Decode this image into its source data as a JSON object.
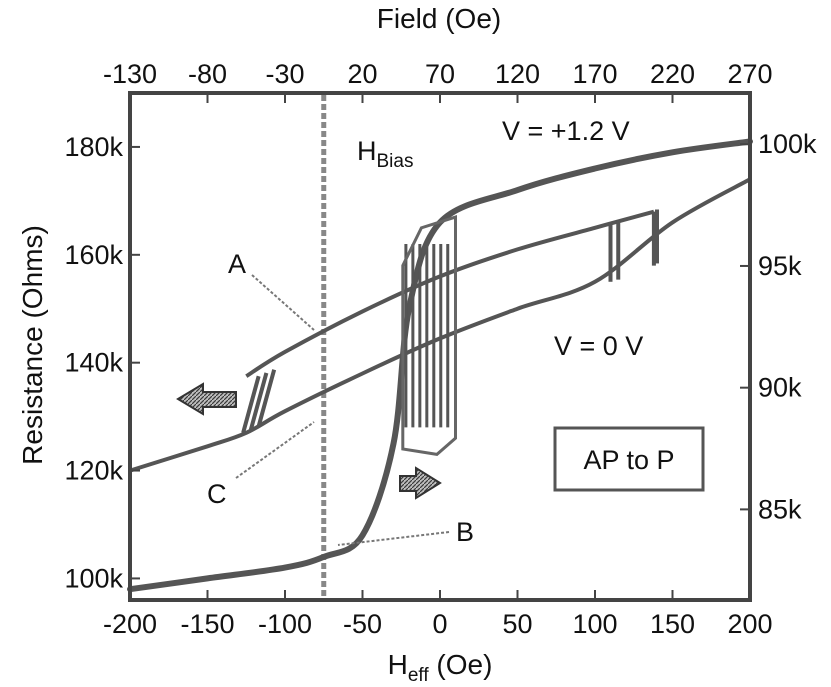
{
  "chart_data": {
    "type": "line",
    "title": "",
    "top_axis": {
      "label": "Field (Oe)",
      "ticks": [
        -130,
        -80,
        -30,
        20,
        70,
        120,
        170,
        220,
        270
      ]
    },
    "bottom_axis": {
      "label_main": "H",
      "label_sub": "eff",
      "label_unit": " (Oe)",
      "xlim": [
        -200,
        200
      ],
      "ticks": [
        -200,
        -150,
        -100,
        -50,
        0,
        50,
        100,
        150,
        200
      ]
    },
    "left_axis": {
      "label": "Resistance (Ohms)",
      "ylim": [
        96000,
        190000
      ],
      "ticks": [
        100000,
        120000,
        140000,
        160000,
        180000
      ],
      "tick_labels": [
        "100k",
        "120k",
        "140k",
        "160k",
        "180k"
      ]
    },
    "right_axis": {
      "ticks": [
        85000,
        90000,
        95000,
        100000
      ],
      "tick_labels": [
        "85k",
        "90k",
        "95k",
        "100k"
      ]
    },
    "bias_line_x": -75,
    "series": [
      {
        "name": "V = +1.2 V",
        "x": [
          -200,
          -150,
          -100,
          -50,
          0,
          50,
          100,
          150,
          200
        ],
        "values": [
          120000,
          126000,
          133000,
          140000,
          147000,
          153000,
          158000,
          166000,
          174000
        ]
      },
      {
        "name": "V = 0 V",
        "x": [
          -200,
          -150,
          -100,
          -75,
          -50,
          -30,
          -20,
          0,
          50,
          100,
          150,
          200
        ],
        "values": [
          98000,
          100000,
          102000,
          104000,
          108000,
          125000,
          150000,
          166000,
          172000,
          176000,
          179000,
          181000
        ]
      }
    ],
    "labels": {
      "bias_main": "H",
      "bias_sub": "Bias",
      "v_plus": "V = +1.2 V",
      "v_zero": "V = 0 V",
      "box": "AP to P",
      "point_a": "A",
      "point_b": "B",
      "point_c": "C"
    }
  }
}
